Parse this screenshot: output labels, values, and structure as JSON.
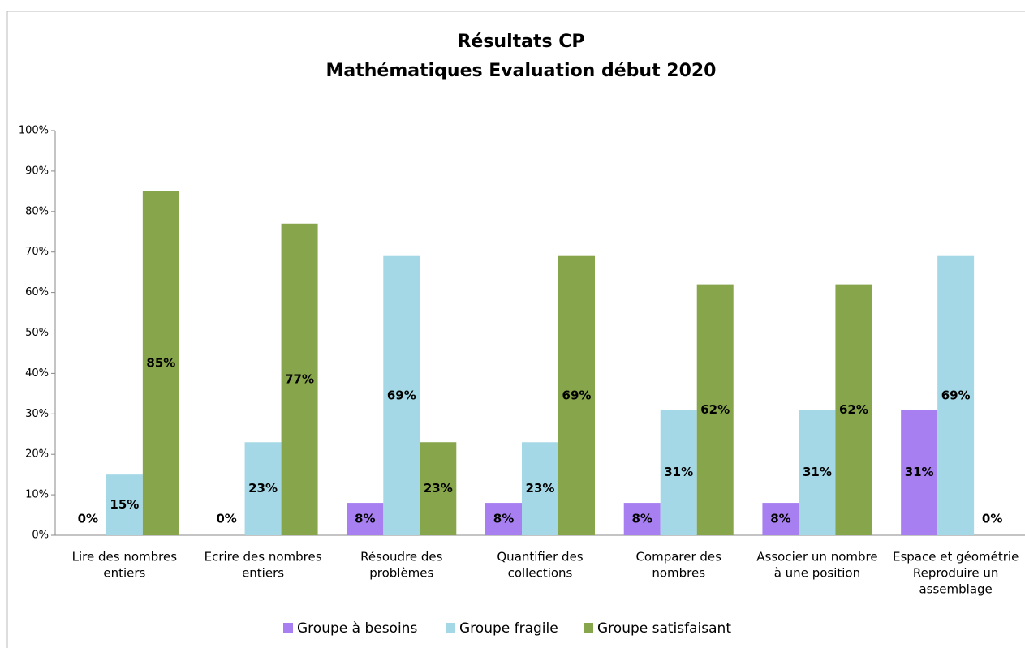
{
  "chart_data": {
    "type": "bar",
    "title": "Résultats CP",
    "subtitle": "Mathématiques Evaluation début 2020",
    "categories": [
      [
        "Lire des nombres",
        "entiers"
      ],
      [
        "Ecrire des nombres",
        "entiers"
      ],
      [
        "Résoudre des",
        "problèmes"
      ],
      [
        "Quantifier des",
        "collections"
      ],
      [
        "Comparer des",
        "nombres"
      ],
      [
        "Associer un nombre",
        "à une position"
      ],
      [
        "Espace et géométrie",
        "Reproduire un",
        "assemblage"
      ]
    ],
    "series": [
      {
        "name": "Groupe à besoins",
        "color": "#a77ff0",
        "values": [
          0,
          0,
          8,
          8,
          8,
          8,
          31
        ],
        "value_labels": [
          "0%",
          "0%",
          "8%",
          "8%",
          "8%",
          "8%",
          "31%"
        ]
      },
      {
        "name": "Groupe fragile",
        "color": "#a5d8e6",
        "values": [
          15,
          23,
          69,
          23,
          31,
          31,
          69
        ],
        "value_labels": [
          "15%",
          "23%",
          "69%",
          "23%",
          "31%",
          "31%",
          "69%"
        ]
      },
      {
        "name": "Groupe satisfaisant",
        "color": "#87a54b",
        "values": [
          85,
          77,
          23,
          69,
          62,
          62,
          0
        ],
        "value_labels": [
          "85%",
          "77%",
          "23%",
          "69%",
          "62%",
          "62%",
          "0%"
        ]
      }
    ],
    "ylim": [
      0,
      100
    ],
    "yticks": [
      {
        "value": 0,
        "label": "0%"
      },
      {
        "value": 10,
        "label": "10%"
      },
      {
        "value": 20,
        "label": "20%"
      },
      {
        "value": 30,
        "label": "30%"
      },
      {
        "value": 40,
        "label": "40%"
      },
      {
        "value": 50,
        "label": "50%"
      },
      {
        "value": 60,
        "label": "60%"
      },
      {
        "value": 70,
        "label": "70%"
      },
      {
        "value": 80,
        "label": "80%"
      },
      {
        "value": 90,
        "label": "90%"
      },
      {
        "value": 100,
        "label": "100%"
      }
    ],
    "legend": "bottom"
  }
}
